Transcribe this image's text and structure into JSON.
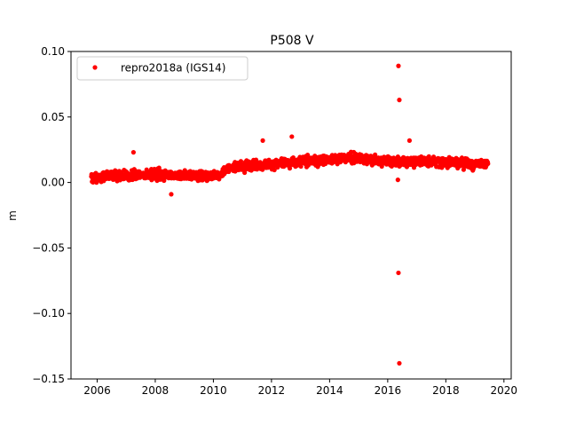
{
  "chart_data": {
    "type": "scatter",
    "title": "P508 V",
    "xlabel": "",
    "ylabel": "m",
    "xlim": [
      2005.1,
      2020.25
    ],
    "ylim": [
      -0.15,
      0.1
    ],
    "xticks": [
      2006,
      2008,
      2010,
      2012,
      2014,
      2016,
      2018,
      2020
    ],
    "xtick_labels": [
      "2006",
      "2008",
      "2010",
      "2012",
      "2014",
      "2016",
      "2018",
      "2020"
    ],
    "yticks": [
      0.1,
      0.05,
      0.0,
      -0.05,
      -0.1,
      -0.15
    ],
    "ytick_labels": [
      "0.10",
      "0.05",
      "0.00",
      "−0.05",
      "−0.10",
      "−0.15"
    ],
    "grid": false,
    "legend_position": "top-left",
    "series": [
      {
        "name": "repro2018a (IGS14)",
        "color": "#ff0000",
        "x_start": 2005.8,
        "x_end": 2019.45,
        "trend": [
          {
            "x": 2005.8,
            "y": 0.004
          },
          {
            "x": 2008.0,
            "y": 0.006
          },
          {
            "x": 2010.2,
            "y": 0.005
          },
          {
            "x": 2010.5,
            "y": 0.011
          },
          {
            "x": 2012.0,
            "y": 0.014
          },
          {
            "x": 2013.0,
            "y": 0.016
          },
          {
            "x": 2014.7,
            "y": 0.019
          },
          {
            "x": 2016.0,
            "y": 0.016
          },
          {
            "x": 2017.0,
            "y": 0.016
          },
          {
            "x": 2019.45,
            "y": 0.014
          }
        ],
        "outliers": [
          {
            "x": 2016.37,
            "y": 0.089
          },
          {
            "x": 2016.4,
            "y": 0.063
          },
          {
            "x": 2016.37,
            "y": -0.069
          },
          {
            "x": 2016.4,
            "y": -0.138
          },
          {
            "x": 2011.7,
            "y": 0.032
          },
          {
            "x": 2012.7,
            "y": 0.035
          },
          {
            "x": 2007.25,
            "y": 0.023
          },
          {
            "x": 2008.55,
            "y": -0.009
          },
          {
            "x": 2016.75,
            "y": 0.032
          },
          {
            "x": 2016.35,
            "y": 0.002
          }
        ]
      }
    ]
  }
}
